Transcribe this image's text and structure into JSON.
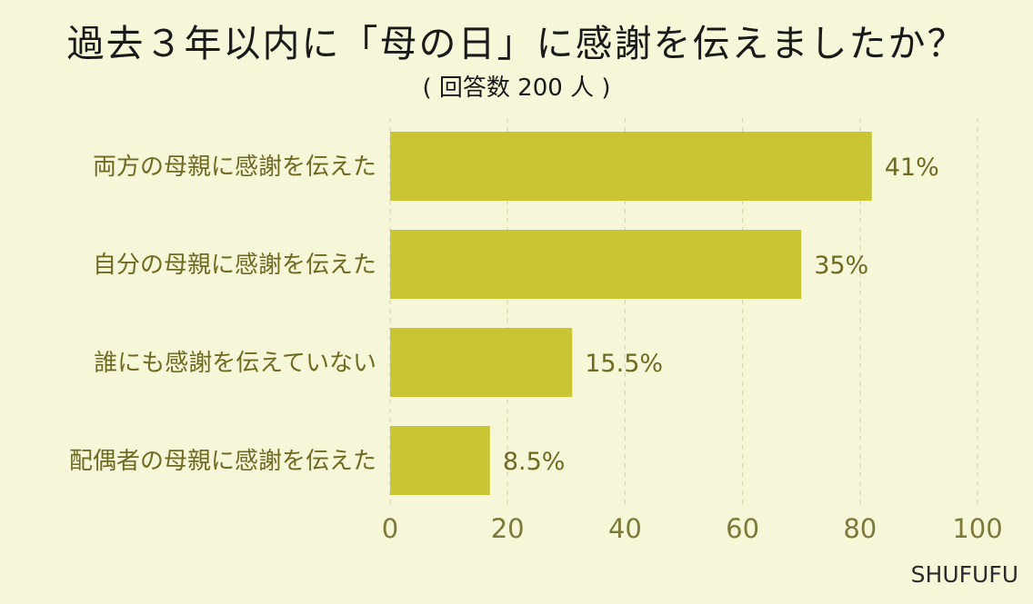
{
  "title": "過去３年以内に「母の日」に感謝を伝えましたか？",
  "subtitle": "( 回答数 200 人 )",
  "brand": "SHUFUFU",
  "chart_data": {
    "type": "bar",
    "orientation": "horizontal",
    "categories": [
      "両方の母親に感謝を伝えた",
      "自分の母親に感謝を伝えた",
      "誰にも感謝を伝えていない",
      "配偶者の母親に感謝を伝えた"
    ],
    "values": [
      82,
      70,
      31,
      17
    ],
    "value_labels": [
      "41%",
      "35%",
      "15.5%",
      "8.5%"
    ],
    "xticks": [
      "0",
      "20",
      "40",
      "60",
      "80",
      "100"
    ],
    "xlim": [
      0,
      100
    ],
    "grid": "vertical dashed",
    "bar_color": "#c9c534"
  }
}
